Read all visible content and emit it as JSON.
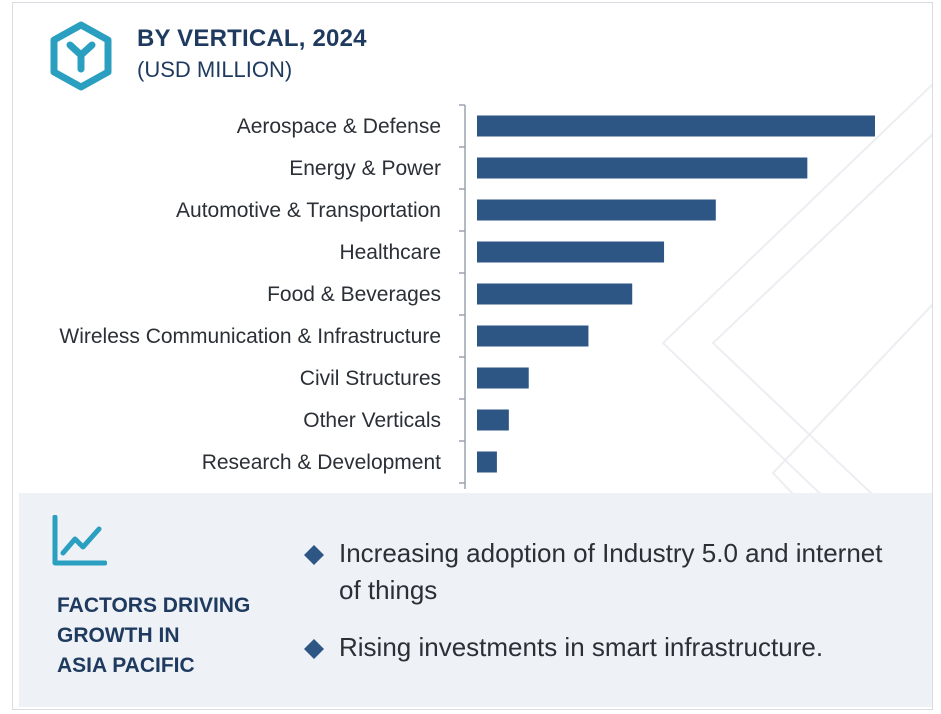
{
  "header": {
    "title": "BY VERTICAL, 2024",
    "subtitle": "(USD MILLION)",
    "logo_icon": "hexagon-y-logo-icon"
  },
  "colors": {
    "bar": "#2d5685",
    "accent": "#2b9fc0",
    "heading": "#1f3a5f",
    "panel_bg": "#eef1f6"
  },
  "chart_data": {
    "type": "bar",
    "orientation": "horizontal",
    "title": "BY VERTICAL, 2024",
    "subtitle": "(USD MILLION)",
    "categories": [
      "Aerospace & Defense",
      "Energy & Power",
      "Automotive & Transportation",
      "Healthcare",
      "Food & Beverages",
      "Wireless Communication & Infrastructure",
      "Civil Structures",
      "Other Verticals",
      "Research & Development"
    ],
    "values": [
      100,
      83,
      60,
      47,
      39,
      28,
      13,
      8,
      5
    ],
    "xlim": [
      0,
      100
    ],
    "xlabel": "",
    "ylabel": "",
    "grid": false,
    "legend": "none"
  },
  "factors": {
    "icon": "growth-chart-icon",
    "title_lines": [
      "FACTORS DRIVING",
      "GROWTH IN",
      "ASIA PACIFIC"
    ],
    "bullets": [
      "Increasing adoption of Industry 5.0 and internet of things",
      "Rising investments in smart infrastructure."
    ]
  }
}
